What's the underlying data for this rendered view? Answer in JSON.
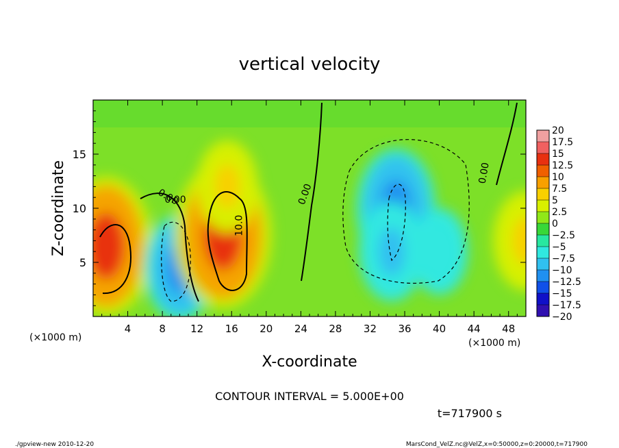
{
  "chart_data": {
    "type": "heatmap",
    "title": "vertical velocity",
    "xlabel": "X-coordinate",
    "ylabel": "Z-coordinate",
    "x_unit_label": "(×1000 m)",
    "y_unit_label": "(×1000 m)",
    "xlim": [
      0,
      50
    ],
    "ylim": [
      0,
      20
    ],
    "x_ticks": [
      4,
      8,
      12,
      16,
      20,
      24,
      28,
      32,
      36,
      40,
      44,
      48
    ],
    "y_ticks": [
      5,
      10,
      15
    ],
    "colorbar": {
      "levels": [
        "20",
        "17.5",
        "15",
        "12.5",
        "10",
        "7.5",
        "5",
        "2.5",
        "0",
        "-2.5",
        "-5",
        "-7.5",
        "-10",
        "-12.5",
        "-15",
        "-17.5",
        "-20"
      ],
      "colors": [
        "#f0a0a0",
        "#f06060",
        "#e83010",
        "#f06000",
        "#f8a000",
        "#f8d000",
        "#d8f000",
        "#90e818",
        "#38d838",
        "#28e8a0",
        "#30e8e0",
        "#30c0f0",
        "#2090f0",
        "#1050e8",
        "#1010c8",
        "#3010b0",
        "#7010a8"
      ]
    },
    "contour_labels": [
      "0.00",
      "0.00",
      "10.0",
      "0.00",
      "0.00"
    ],
    "features": [
      {
        "x": 1.5,
        "z": 6.5,
        "w": 14
      },
      {
        "x": 10,
        "z": 4.5,
        "w": -9
      },
      {
        "x": 15,
        "z": 7.5,
        "w": 15
      },
      {
        "x": 15.5,
        "z": 12,
        "w": 7
      },
      {
        "x": 35,
        "z": 10,
        "w": -11
      },
      {
        "x": 34.5,
        "z": 6,
        "w": -8
      },
      {
        "x": 40,
        "z": 6,
        "w": -6
      },
      {
        "x": 50,
        "z": 7,
        "w": 8
      }
    ],
    "contour_interval_text": "CONTOUR INTERVAL = 5.000E+00",
    "time_text": "t=717900 s"
  },
  "footer": {
    "left": "./gpview-new  2010-12-20",
    "right": "MarsCond_VelZ.nc@VelZ,x=0:50000,z=0:20000,t=717900"
  }
}
